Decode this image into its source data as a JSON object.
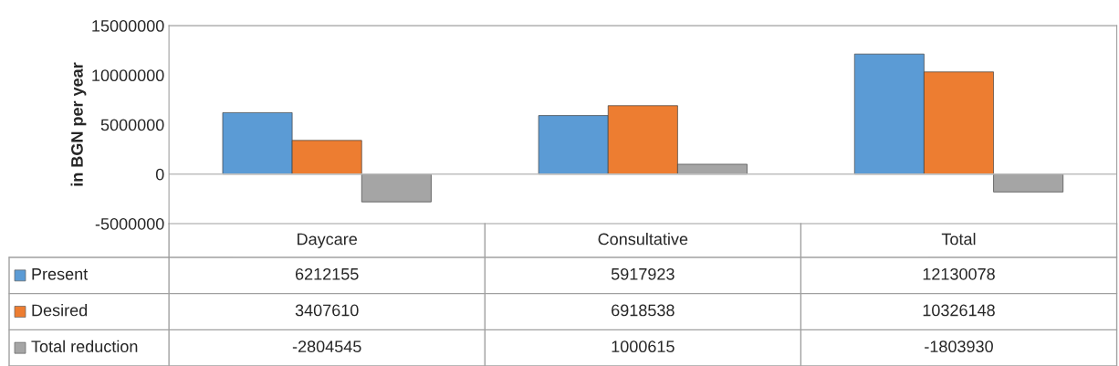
{
  "chart_data": {
    "type": "bar",
    "ylabel": "in BGN per year",
    "categories": [
      "Daycare",
      "Consultative",
      "Total"
    ],
    "series": [
      {
        "name": "Present",
        "color": "#5b9bd5",
        "values": [
          6212155,
          5917923,
          12130078
        ]
      },
      {
        "name": "Desired",
        "color": "#ed7d31",
        "values": [
          3407610,
          6918538,
          10326148
        ]
      },
      {
        "name": "Total reduction",
        "color": "#a5a5a5",
        "values": [
          -2804545,
          1000615,
          -1803930
        ]
      }
    ],
    "ylim": [
      -5000000,
      15000000
    ],
    "yticks": [
      -5000000,
      0,
      5000000,
      10000000,
      15000000
    ],
    "legend": "bottom left",
    "data_labels": true
  }
}
